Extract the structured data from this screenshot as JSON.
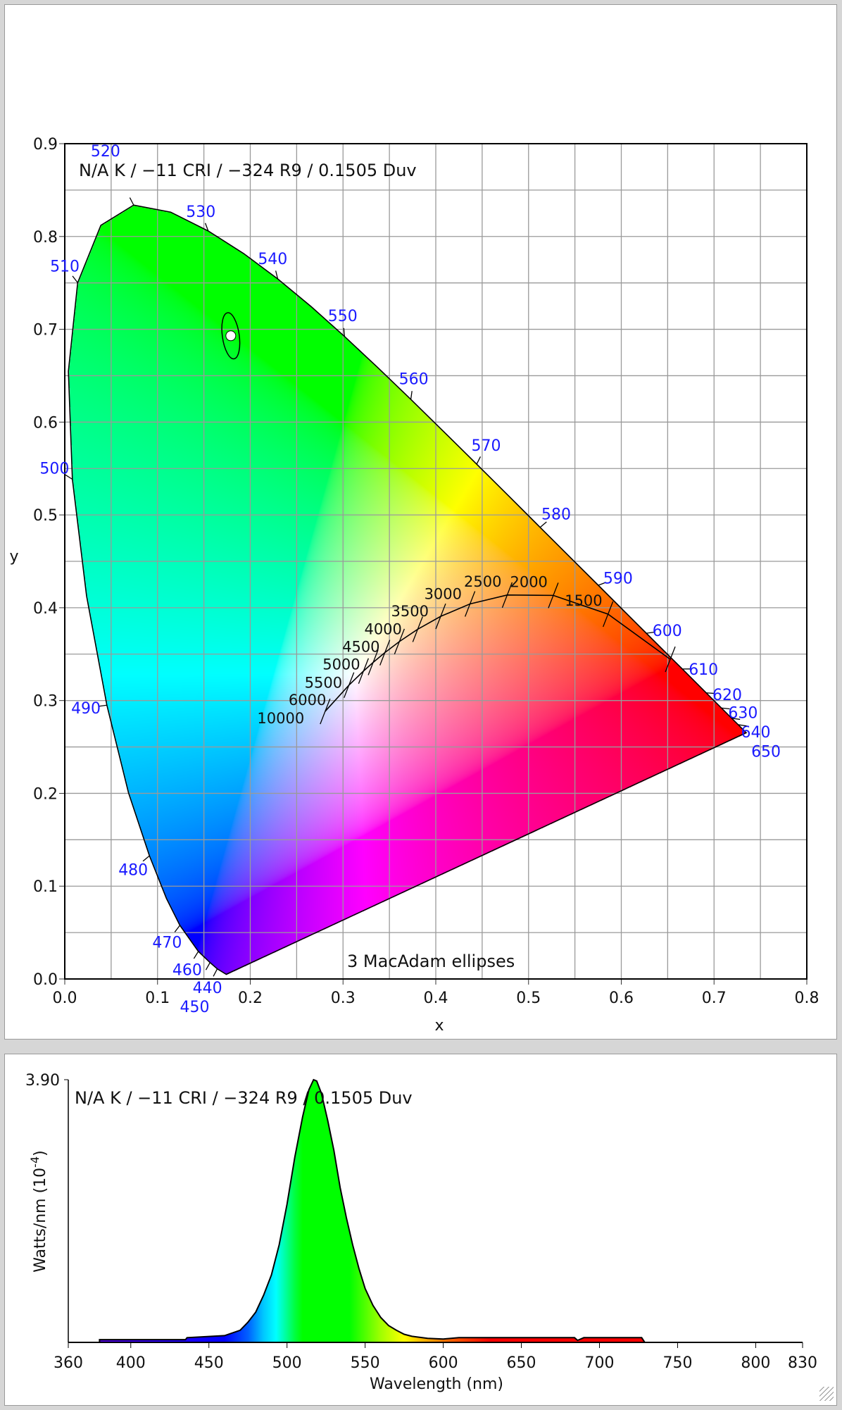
{
  "chart_data": [
    {
      "type": "scatter",
      "title": "N/A K / −11 CRI / −324 R9 / 0.1505 Duv",
      "annotation": "3  MacAdam ellipses",
      "xlabel": "x",
      "ylabel": "y",
      "xlim": [
        0,
        0.8
      ],
      "ylim": [
        0,
        0.9
      ],
      "x_ticks": [
        "0.0",
        "0.1",
        "0.2",
        "0.3",
        "0.4",
        "0.5",
        "0.6",
        "0.7",
        "0.8"
      ],
      "y_ticks": [
        "0.0",
        "0.1",
        "0.2",
        "0.3",
        "0.4",
        "0.5",
        "0.6",
        "0.7",
        "0.8",
        "0.9"
      ],
      "grid": true,
      "point": {
        "x": 0.179,
        "y": 0.693,
        "macadam_steps": 3
      },
      "spectral_locus": [
        {
          "nm": 380,
          "x": 0.1741,
          "y": 0.005
        },
        {
          "nm": 440,
          "x": 0.1644,
          "y": 0.0109,
          "label": "440"
        },
        {
          "nm": 450,
          "x": 0.1566,
          "y": 0.0177,
          "label": "450"
        },
        {
          "nm": 460,
          "x": 0.144,
          "y": 0.0297,
          "label": "460"
        },
        {
          "nm": 470,
          "x": 0.1241,
          "y": 0.0578,
          "label": "470"
        },
        {
          "nm": 475,
          "x": 0.1096,
          "y": 0.0868
        },
        {
          "nm": 480,
          "x": 0.0913,
          "y": 0.1327,
          "label": "480"
        },
        {
          "nm": 485,
          "x": 0.0687,
          "y": 0.2007
        },
        {
          "nm": 490,
          "x": 0.0454,
          "y": 0.295,
          "label": "490"
        },
        {
          "nm": 495,
          "x": 0.0235,
          "y": 0.4127
        },
        {
          "nm": 500,
          "x": 0.0082,
          "y": 0.5384,
          "label": "500"
        },
        {
          "nm": 505,
          "x": 0.0039,
          "y": 0.6548
        },
        {
          "nm": 510,
          "x": 0.0139,
          "y": 0.7502,
          "label": "510"
        },
        {
          "nm": 515,
          "x": 0.0389,
          "y": 0.812
        },
        {
          "nm": 520,
          "x": 0.0743,
          "y": 0.8338,
          "label": "520"
        },
        {
          "nm": 525,
          "x": 0.1142,
          "y": 0.8262
        },
        {
          "nm": 530,
          "x": 0.1547,
          "y": 0.8059,
          "label": "530"
        },
        {
          "nm": 535,
          "x": 0.1929,
          "y": 0.7816
        },
        {
          "nm": 540,
          "x": 0.2296,
          "y": 0.7543,
          "label": "540"
        },
        {
          "nm": 545,
          "x": 0.2658,
          "y": 0.7243
        },
        {
          "nm": 550,
          "x": 0.3016,
          "y": 0.6923,
          "label": "550"
        },
        {
          "nm": 555,
          "x": 0.3373,
          "y": 0.6589
        },
        {
          "nm": 560,
          "x": 0.3731,
          "y": 0.6245,
          "label": "560"
        },
        {
          "nm": 565,
          "x": 0.4087,
          "y": 0.5896
        },
        {
          "nm": 570,
          "x": 0.4441,
          "y": 0.5547,
          "label": "570"
        },
        {
          "nm": 575,
          "x": 0.4788,
          "y": 0.5202
        },
        {
          "nm": 580,
          "x": 0.5125,
          "y": 0.4866,
          "label": "580"
        },
        {
          "nm": 585,
          "x": 0.5448,
          "y": 0.4544
        },
        {
          "nm": 590,
          "x": 0.5752,
          "y": 0.4242,
          "label": "590"
        },
        {
          "nm": 595,
          "x": 0.6029,
          "y": 0.3965
        },
        {
          "nm": 600,
          "x": 0.627,
          "y": 0.3725,
          "label": "600"
        },
        {
          "nm": 605,
          "x": 0.6482,
          "y": 0.3514
        },
        {
          "nm": 610,
          "x": 0.6658,
          "y": 0.334,
          "label": "610"
        },
        {
          "nm": 620,
          "x": 0.6915,
          "y": 0.3083,
          "label": "620"
        },
        {
          "nm": 630,
          "x": 0.7079,
          "y": 0.292,
          "label": "630"
        },
        {
          "nm": 640,
          "x": 0.719,
          "y": 0.2809,
          "label": "640"
        },
        {
          "nm": 650,
          "x": 0.726,
          "y": 0.274,
          "label": "650"
        },
        {
          "nm": 700,
          "x": 0.7347,
          "y": 0.2653
        }
      ],
      "planckian_locus": [
        {
          "K": 1000,
          "x": 0.6528,
          "y": 0.3444
        },
        {
          "K": 1500,
          "x": 0.5857,
          "y": 0.3931,
          "label": "1500"
        },
        {
          "K": 2000,
          "x": 0.5267,
          "y": 0.4133,
          "label": "2000"
        },
        {
          "K": 2500,
          "x": 0.477,
          "y": 0.4137,
          "label": "2500"
        },
        {
          "K": 3000,
          "x": 0.4369,
          "y": 0.4041,
          "label": "3000"
        },
        {
          "K": 3500,
          "x": 0.4053,
          "y": 0.3907,
          "label": "3500"
        },
        {
          "K": 4000,
          "x": 0.3805,
          "y": 0.3768,
          "label": "4000"
        },
        {
          "K": 4500,
          "x": 0.3608,
          "y": 0.3636,
          "label": "4500"
        },
        {
          "K": 5000,
          "x": 0.3451,
          "y": 0.3516,
          "label": "5000"
        },
        {
          "K": 5500,
          "x": 0.3325,
          "y": 0.3411,
          "label": "5500"
        },
        {
          "K": 6000,
          "x": 0.3221,
          "y": 0.3318,
          "label": "6000"
        },
        {
          "K": 7000,
          "x": 0.3064,
          "y": 0.3166
        },
        {
          "K": 10000,
          "x": 0.2807,
          "y": 0.2883,
          "label": "10000"
        }
      ]
    },
    {
      "type": "area",
      "title": "N/A K / −11 CRI / −324 R9 / 0.1505 Duv",
      "xlabel": "Wavelength (nm)",
      "ylabel": "Watts/nm (10",
      "ylabel_exponent": "-4",
      "ylabel_close": ")",
      "xlim": [
        360,
        830
      ],
      "ylim": [
        0,
        3.9
      ],
      "x_ticks": [
        "360",
        "400",
        "450",
        "500",
        "550",
        "600",
        "650",
        "700",
        "750",
        "800",
        "830"
      ],
      "y_ticks": [
        "3.90"
      ],
      "x": [
        380,
        435,
        436,
        460,
        470,
        475,
        480,
        485,
        490,
        495,
        500,
        505,
        510,
        514,
        517,
        519,
        522,
        526,
        530,
        534,
        538,
        542,
        546,
        550,
        555,
        560,
        565,
        570,
        575,
        580,
        590,
        600,
        610,
        650,
        684,
        686,
        690,
        727,
        729
      ],
      "values": [
        0.04,
        0.04,
        0.07,
        0.1,
        0.18,
        0.3,
        0.45,
        0.7,
        1.0,
        1.45,
        2.05,
        2.75,
        3.35,
        3.75,
        3.9,
        3.88,
        3.7,
        3.3,
        2.85,
        2.3,
        1.85,
        1.45,
        1.1,
        0.8,
        0.55,
        0.37,
        0.25,
        0.18,
        0.12,
        0.09,
        0.06,
        0.05,
        0.07,
        0.07,
        0.07,
        0.03,
        0.07,
        0.07,
        0.0
      ]
    }
  ]
}
